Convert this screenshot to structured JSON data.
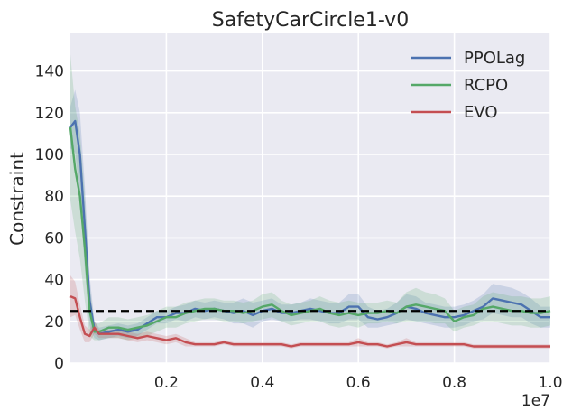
{
  "chart_data": {
    "type": "line",
    "title": "SafetyCarCircle1-v0",
    "xlabel": "",
    "ylabel": "Constraint",
    "x_offset_label": "1e7",
    "xlim": [
      0,
      1.0
    ],
    "ylim": [
      0,
      158
    ],
    "x_ticks": [
      0.2,
      0.4,
      0.6,
      0.8,
      1.0
    ],
    "x_tick_labels": [
      "0.2",
      "0.4",
      "0.6",
      "0.8",
      "1.0"
    ],
    "y_ticks": [
      0,
      20,
      40,
      60,
      80,
      100,
      120,
      140
    ],
    "y_tick_labels": [
      "0",
      "20",
      "40",
      "60",
      "80",
      "100",
      "120",
      "140"
    ],
    "grid": true,
    "legend_position": "top-right",
    "threshold": {
      "value": 25,
      "style": "dashed",
      "color": "#000000"
    },
    "series": [
      {
        "name": "PPOLag",
        "color": "#4c72b0",
        "x": [
          0.0,
          0.01,
          0.02,
          0.03,
          0.04,
          0.05,
          0.06,
          0.08,
          0.1,
          0.12,
          0.14,
          0.16,
          0.18,
          0.2,
          0.22,
          0.24,
          0.26,
          0.28,
          0.3,
          0.32,
          0.34,
          0.36,
          0.38,
          0.4,
          0.42,
          0.44,
          0.46,
          0.48,
          0.5,
          0.52,
          0.54,
          0.56,
          0.58,
          0.6,
          0.62,
          0.64,
          0.66,
          0.68,
          0.7,
          0.72,
          0.74,
          0.76,
          0.78,
          0.8,
          0.82,
          0.84,
          0.86,
          0.88,
          0.9,
          0.92,
          0.94,
          0.96,
          0.98,
          1.0
        ],
        "values": [
          113,
          116,
          100,
          65,
          30,
          16,
          14,
          15,
          16,
          15,
          16,
          19,
          22,
          22,
          24,
          24,
          26,
          25,
          26,
          25,
          24,
          25,
          23,
          25,
          26,
          24,
          24,
          25,
          26,
          25,
          24,
          24,
          27,
          27,
          22,
          21,
          22,
          24,
          27,
          26,
          24,
          23,
          22,
          22,
          23,
          25,
          27,
          31,
          30,
          29,
          28,
          25,
          22,
          22
        ],
        "spread": [
          10,
          15,
          20,
          20,
          12,
          4,
          3,
          3,
          3,
          3,
          3,
          3,
          3,
          3,
          3,
          4,
          4,
          4,
          4,
          4,
          5,
          6,
          6,
          5,
          5,
          4,
          4,
          4,
          5,
          5,
          5,
          5,
          6,
          6,
          5,
          4,
          4,
          5,
          6,
          6,
          5,
          5,
          5,
          5,
          5,
          5,
          6,
          7,
          7,
          7,
          6,
          6,
          5,
          5
        ]
      },
      {
        "name": "RCPO",
        "color": "#55a868",
        "x": [
          0.0,
          0.01,
          0.02,
          0.03,
          0.04,
          0.05,
          0.06,
          0.08,
          0.1,
          0.12,
          0.14,
          0.16,
          0.18,
          0.2,
          0.22,
          0.24,
          0.26,
          0.28,
          0.3,
          0.32,
          0.34,
          0.36,
          0.38,
          0.4,
          0.42,
          0.44,
          0.46,
          0.48,
          0.5,
          0.52,
          0.54,
          0.56,
          0.58,
          0.6,
          0.62,
          0.64,
          0.66,
          0.68,
          0.7,
          0.72,
          0.74,
          0.76,
          0.78,
          0.8,
          0.82,
          0.84,
          0.86,
          0.88,
          0.9,
          0.92,
          0.94,
          0.96,
          0.98,
          1.0
        ],
        "values": [
          113,
          93,
          80,
          55,
          25,
          15,
          15,
          17,
          17,
          16,
          17,
          18,
          20,
          22,
          22,
          24,
          25,
          26,
          26,
          25,
          25,
          24,
          25,
          27,
          28,
          25,
          23,
          24,
          25,
          26,
          24,
          23,
          24,
          23,
          24,
          24,
          25,
          24,
          27,
          28,
          27,
          26,
          25,
          20,
          22,
          23,
          26,
          27,
          26,
          25,
          25,
          24,
          24,
          25
        ],
        "spread": [
          35,
          30,
          30,
          25,
          12,
          4,
          4,
          5,
          5,
          5,
          5,
          5,
          5,
          5,
          5,
          5,
          5,
          5,
          5,
          5,
          5,
          5,
          5,
          6,
          6,
          5,
          5,
          5,
          5,
          6,
          6,
          6,
          6,
          6,
          5,
          5,
          5,
          5,
          7,
          8,
          7,
          7,
          6,
          5,
          5,
          5,
          6,
          7,
          7,
          7,
          7,
          7,
          7,
          7
        ]
      },
      {
        "name": "EVO",
        "color": "#c44e52",
        "x": [
          0.0,
          0.01,
          0.02,
          0.03,
          0.04,
          0.05,
          0.06,
          0.08,
          0.1,
          0.12,
          0.14,
          0.16,
          0.18,
          0.2,
          0.22,
          0.24,
          0.26,
          0.28,
          0.3,
          0.32,
          0.34,
          0.36,
          0.38,
          0.4,
          0.42,
          0.44,
          0.46,
          0.48,
          0.5,
          0.52,
          0.54,
          0.56,
          0.58,
          0.6,
          0.62,
          0.64,
          0.66,
          0.68,
          0.7,
          0.72,
          0.74,
          0.76,
          0.78,
          0.8,
          0.82,
          0.84,
          0.86,
          0.88,
          0.9,
          0.92,
          0.94,
          0.96,
          0.98,
          1.0
        ],
        "values": [
          32,
          31,
          22,
          14,
          13,
          17,
          14,
          14,
          14,
          13,
          12,
          13,
          12,
          11,
          12,
          10,
          9,
          9,
          9,
          10,
          9,
          9,
          9,
          9,
          9,
          9,
          8,
          9,
          9,
          9,
          9,
          9,
          9,
          10,
          9,
          9,
          8,
          9,
          10,
          9,
          9,
          9,
          9,
          9,
          9,
          8,
          8,
          8,
          8,
          8,
          8,
          8,
          8,
          8
        ],
        "spread": [
          10,
          8,
          6,
          4,
          3,
          3,
          2,
          2,
          2,
          2,
          2,
          2,
          2,
          2,
          2,
          2,
          1,
          1,
          1,
          1,
          1,
          1,
          1,
          1,
          1,
          1,
          1,
          1,
          1,
          1,
          1,
          1,
          1,
          2,
          1,
          1,
          1,
          1,
          2,
          1,
          1,
          1,
          1,
          1,
          1,
          1,
          1,
          1,
          1,
          1,
          1,
          1,
          1,
          1
        ]
      }
    ]
  }
}
